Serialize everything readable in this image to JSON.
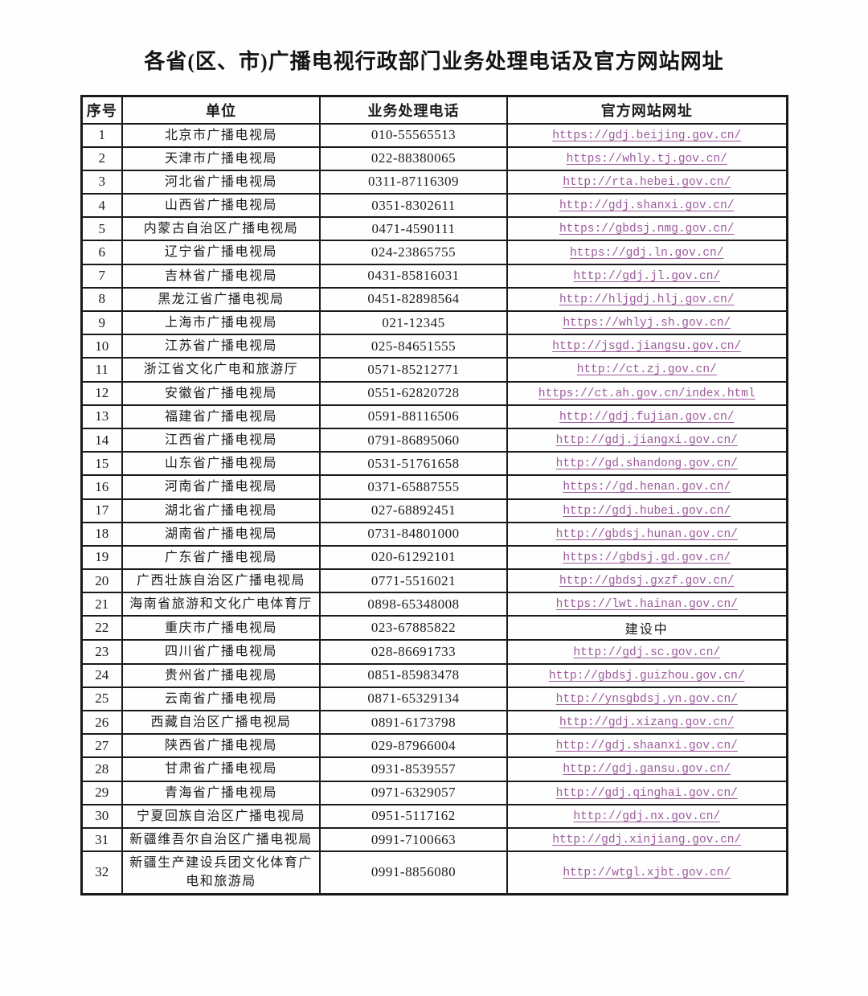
{
  "title": "各省(区、市)广播电视行政部门业务处理电话及官方网站网址",
  "colors": {
    "link": "#9c5a9c",
    "border": "#1a1a1a",
    "text": "#1c1c1c",
    "background": "#ffffff"
  },
  "table": {
    "headers": [
      "序号",
      "单位",
      "业务处理电话",
      "官方网站网址"
    ],
    "rows": [
      {
        "no": "1",
        "unit": "北京市广播电视局",
        "phone": "010-55565513",
        "website": "https://gdj.beijing.gov.cn/",
        "link": true
      },
      {
        "no": "2",
        "unit": "天津市广播电视局",
        "phone": "022-88380065",
        "website": "https://whly.tj.gov.cn/",
        "link": true
      },
      {
        "no": "3",
        "unit": "河北省广播电视局",
        "phone": "0311-87116309",
        "website": "http://rta.hebei.gov.cn/",
        "link": true
      },
      {
        "no": "4",
        "unit": "山西省广播电视局",
        "phone": "0351-8302611",
        "website": "http://gdj.shanxi.gov.cn/",
        "link": true
      },
      {
        "no": "5",
        "unit": "内蒙古自治区广播电视局",
        "phone": "0471-4590111",
        "website": "https://gbdsj.nmg.gov.cn/",
        "link": true
      },
      {
        "no": "6",
        "unit": "辽宁省广播电视局",
        "phone": "024-23865755",
        "website": "https://gdj.ln.gov.cn/",
        "link": true
      },
      {
        "no": "7",
        "unit": "吉林省广播电视局",
        "phone": "0431-85816031",
        "website": "http://gdj.jl.gov.cn/",
        "link": true
      },
      {
        "no": "8",
        "unit": "黑龙江省广播电视局",
        "phone": "0451-82898564",
        "website": "http://hljgdj.hlj.gov.cn/",
        "link": true
      },
      {
        "no": "9",
        "unit": "上海市广播电视局",
        "phone": "021-12345",
        "website": "https://whlyj.sh.gov.cn/",
        "link": true
      },
      {
        "no": "10",
        "unit": "江苏省广播电视局",
        "phone": "025-84651555",
        "website": "http://jsgd.jiangsu.gov.cn/",
        "link": true
      },
      {
        "no": "11",
        "unit": "浙江省文化广电和旅游厅",
        "phone": "0571-85212771",
        "website": "http://ct.zj.gov.cn/",
        "link": true
      },
      {
        "no": "12",
        "unit": "安徽省广播电视局",
        "phone": "0551-62820728",
        "website": "https://ct.ah.gov.cn/index.html",
        "link": true
      },
      {
        "no": "13",
        "unit": "福建省广播电视局",
        "phone": "0591-88116506",
        "website": "http://gdj.fujian.gov.cn/",
        "link": true
      },
      {
        "no": "14",
        "unit": "江西省广播电视局",
        "phone": "0791-86895060",
        "website": "http://gdj.jiangxi.gov.cn/",
        "link": true
      },
      {
        "no": "15",
        "unit": "山东省广播电视局",
        "phone": "0531-51761658",
        "website": "http://gd.shandong.gov.cn/",
        "link": true
      },
      {
        "no": "16",
        "unit": "河南省广播电视局",
        "phone": "0371-65887555",
        "website": "https://gd.henan.gov.cn/",
        "link": true
      },
      {
        "no": "17",
        "unit": "湖北省广播电视局",
        "phone": "027-68892451",
        "website": "http://gdj.hubei.gov.cn/",
        "link": true
      },
      {
        "no": "18",
        "unit": "湖南省广播电视局",
        "phone": "0731-84801000",
        "website": "http://gbdsj.hunan.gov.cn/",
        "link": true
      },
      {
        "no": "19",
        "unit": "广东省广播电视局",
        "phone": "020-61292101",
        "website": "https://gbdsj.gd.gov.cn/",
        "link": true
      },
      {
        "no": "20",
        "unit": "广西壮族自治区广播电视局",
        "phone": "0771-5516021",
        "website": "http://gbdsj.gxzf.gov.cn/",
        "link": true
      },
      {
        "no": "21",
        "unit": "海南省旅游和文化广电体育厅",
        "phone": "0898-65348008",
        "website": "https://lwt.hainan.gov.cn/",
        "link": true
      },
      {
        "no": "22",
        "unit": "重庆市广播电视局",
        "phone": "023-67885822",
        "website": "建设中",
        "link": false
      },
      {
        "no": "23",
        "unit": "四川省广播电视局",
        "phone": "028-86691733",
        "website": "http://gdj.sc.gov.cn/",
        "link": true
      },
      {
        "no": "24",
        "unit": "贵州省广播电视局",
        "phone": "0851-85983478",
        "website": "http://gbdsj.guizhou.gov.cn/",
        "link": true
      },
      {
        "no": "25",
        "unit": "云南省广播电视局",
        "phone": "0871-65329134",
        "website": "http://ynsgbdsj.yn.gov.cn/",
        "link": true
      },
      {
        "no": "26",
        "unit": "西藏自治区广播电视局",
        "phone": "0891-6173798",
        "website": "http://gdj.xizang.gov.cn/",
        "link": true
      },
      {
        "no": "27",
        "unit": "陕西省广播电视局",
        "phone": "029-87966004",
        "website": "http://gdj.shaanxi.gov.cn/",
        "link": true
      },
      {
        "no": "28",
        "unit": "甘肃省广播电视局",
        "phone": "0931-8539557",
        "website": "http://gdj.gansu.gov.cn/",
        "link": true
      },
      {
        "no": "29",
        "unit": "青海省广播电视局",
        "phone": "0971-6329057",
        "website": "http://gdj.qinghai.gov.cn/",
        "link": true
      },
      {
        "no": "30",
        "unit": "宁夏回族自治区广播电视局",
        "phone": "0951-5117162",
        "website": "http://gdj.nx.gov.cn/",
        "link": true
      },
      {
        "no": "31",
        "unit": "新疆维吾尔自治区广播电视局",
        "phone": "0991-7100663",
        "website": "http://gdj.xinjiang.gov.cn/",
        "link": true
      },
      {
        "no": "32",
        "unit": "新疆生产建设兵团文化体育广电和旅游局",
        "phone": "0991-8856080",
        "website": "http://wtgl.xjbt.gov.cn/",
        "link": true
      }
    ]
  }
}
